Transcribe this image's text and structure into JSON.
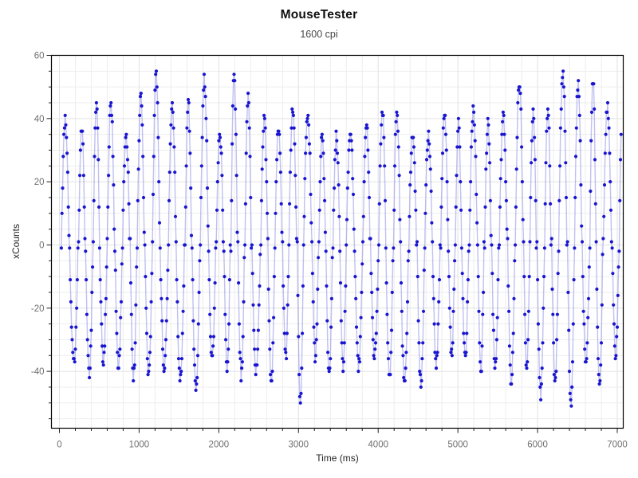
{
  "window": {
    "app_name": "MouseTester"
  },
  "chart_data": {
    "type": "scatter",
    "title": "MouseTester",
    "subtitle": "1600 cpi",
    "xlabel": "Time (ms)",
    "ylabel": "xCounts",
    "series": [
      {
        "name": "xCounts",
        "marker": "filled-circle",
        "line": "thin-connecting"
      }
    ],
    "xlim": [
      -100,
      7075
    ],
    "ylim": [
      -58,
      60
    ],
    "x_major_ticks": [
      0,
      1000,
      2000,
      3000,
      4000,
      5000,
      6000,
      7000
    ],
    "x_minor_step": 200,
    "y_major_ticks": [
      60,
      40,
      20,
      0,
      -20,
      -40
    ],
    "y_minor_step": 5,
    "grid": "minor-and-major-light-gray",
    "legend": "none",
    "signal": {
      "description": "rapid left-right mouse strokes: xCounts oscillates between about -52 and +54 counts, period ~185 ms, sampled every 8 ms (125 Hz), from 0 to ~7050 ms",
      "sample_interval_ms": 8,
      "t_start_ms": 24,
      "t_end_ms": 7048,
      "half_period_ms_min": 78,
      "half_period_ms_max": 106,
      "amplitude_min": 34,
      "amplitude_max": 48,
      "spike_probability": 0.08,
      "spike_amplitude_min": 50,
      "spike_amplitude_max": 55,
      "noise_counts": 2,
      "seed": 20,
      "observed_peak_max": 54,
      "observed_peak_min": -52
    },
    "colors": {
      "marker": "#1a16cf",
      "line": "rgba(90,90,220,0.38)",
      "grid_minor": "#ededed",
      "grid_major": "#e2e2e2",
      "plot_border": "#000000",
      "tick": "#222222",
      "tick_label": "#6f6f6f",
      "title": "#0f0f0f",
      "subtitle": "#474747",
      "axis_label": "#262626",
      "background": "#ffffff"
    }
  }
}
